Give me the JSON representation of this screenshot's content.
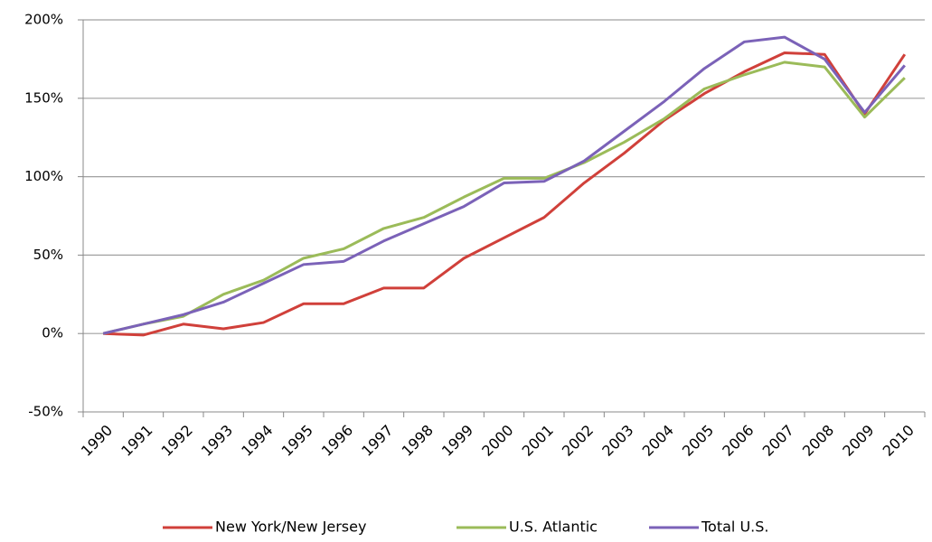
{
  "chart_data": {
    "type": "line",
    "categories": [
      "1990",
      "1991",
      "1992",
      "1993",
      "1994",
      "1995",
      "1996",
      "1997",
      "1998",
      "1999",
      "2000",
      "2001",
      "2002",
      "2003",
      "2004",
      "2005",
      "2006",
      "2007",
      "2008",
      "2009",
      "2010"
    ],
    "series": [
      {
        "name": "New York/New Jersey",
        "color": "#d0403a",
        "values": [
          0,
          -1,
          6,
          3,
          7,
          19,
          19,
          29,
          29,
          48,
          61,
          74,
          96,
          115,
          136,
          153,
          167,
          179,
          178,
          140,
          178
        ]
      },
      {
        "name": "U.S. Atlantic",
        "color": "#9bbb59",
        "values": [
          0,
          6,
          11,
          25,
          34,
          48,
          54,
          67,
          74,
          87,
          99,
          99,
          109,
          122,
          137,
          156,
          165,
          173,
          170,
          138,
          163
        ]
      },
      {
        "name": "Total U.S.",
        "color": "#7b62b8",
        "values": [
          0,
          6,
          12,
          20,
          32,
          44,
          46,
          59,
          70,
          81,
          96,
          97,
          110,
          129,
          148,
          169,
          186,
          189,
          175,
          141,
          171
        ]
      }
    ],
    "ylim": [
      -50,
      200
    ],
    "yticks": [
      {
        "value": -50,
        "label": "-50%"
      },
      {
        "value": 0,
        "label": "0%"
      },
      {
        "value": 50,
        "label": "50%"
      },
      {
        "value": 100,
        "label": "100%"
      },
      {
        "value": 150,
        "label": "150%"
      },
      {
        "value": 200,
        "label": "200%"
      }
    ],
    "grid": true,
    "legend": "bottom"
  }
}
